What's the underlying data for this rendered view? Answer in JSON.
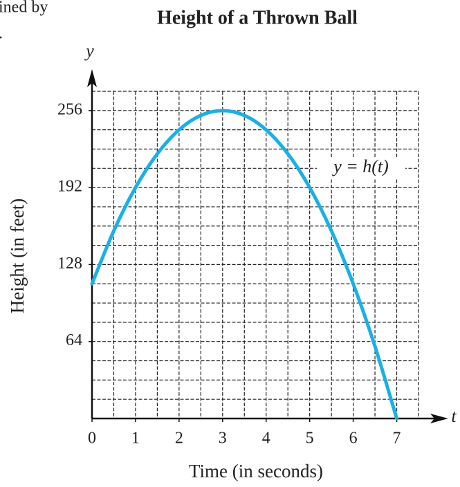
{
  "chart_data": {
    "type": "line",
    "title": "Height of a Thrown Ball",
    "cropped_text": [
      "ined by",
      "."
    ],
    "x_label": "Time (in seconds)",
    "y_label": "Height (in feet)",
    "x_axis_name": "t",
    "y_axis_name": "y",
    "annotation": "y = h(t)",
    "x": [
      0,
      0.5,
      1,
      1.5,
      2,
      2.5,
      3,
      3.5,
      4,
      4.5,
      5,
      5.5,
      6,
      6.5,
      7
    ],
    "series": [
      {
        "name": "h(t)",
        "color": "#1ab0e6",
        "values": [
          112,
          156,
          192,
          220,
          240,
          252,
          256,
          252,
          240,
          220,
          192,
          156,
          112,
          60,
          0
        ]
      }
    ],
    "xlim": [
      0,
      7.5
    ],
    "ylim": [
      0,
      272
    ],
    "xticks": [
      0,
      1,
      2,
      3,
      4,
      5,
      6,
      7
    ],
    "yticks": [
      64,
      128,
      192,
      256
    ],
    "grid": true,
    "xgrid": [
      0.5,
      1,
      1.5,
      2,
      2.5,
      3,
      3.5,
      4,
      4.5,
      5,
      5.5,
      6,
      6.5,
      7,
      7.5
    ],
    "ygrid": [
      16,
      32,
      48,
      64,
      80,
      96,
      112,
      128,
      144,
      160,
      176,
      192,
      208,
      224,
      240,
      256,
      272
    ]
  }
}
